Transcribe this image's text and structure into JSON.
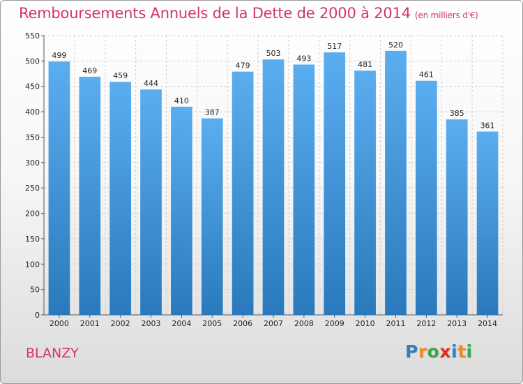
{
  "header": {
    "title": "Remboursements Annuels de la Dette de 2000 à 2014",
    "subtitle": "(en milliers d'€)"
  },
  "footer": {
    "city": "BLANZY",
    "logo_letters": [
      "P",
      "r",
      "o",
      "x",
      "i",
      "t",
      "i"
    ],
    "logo_colors": [
      "#2f7fc6",
      "#f08a22",
      "#3aa84a",
      "#e0301e",
      "#2f7fc6",
      "#f08a22",
      "#3aa84a"
    ]
  },
  "chart_data": {
    "type": "bar",
    "categories": [
      "2000",
      "2001",
      "2002",
      "2003",
      "2004",
      "2005",
      "2006",
      "2007",
      "2008",
      "2009",
      "2010",
      "2011",
      "2012",
      "2013",
      "2014"
    ],
    "values": [
      499,
      469,
      459,
      444,
      410,
      387,
      479,
      503,
      493,
      517,
      481,
      520,
      461,
      385,
      361
    ],
    "ylim": [
      0,
      550
    ],
    "yticks": [
      0,
      50,
      100,
      150,
      200,
      250,
      300,
      350,
      400,
      450,
      500,
      550
    ],
    "grid": true,
    "bar_color_top": "#5aaef0",
    "bar_color_bottom": "#2a79bd"
  }
}
